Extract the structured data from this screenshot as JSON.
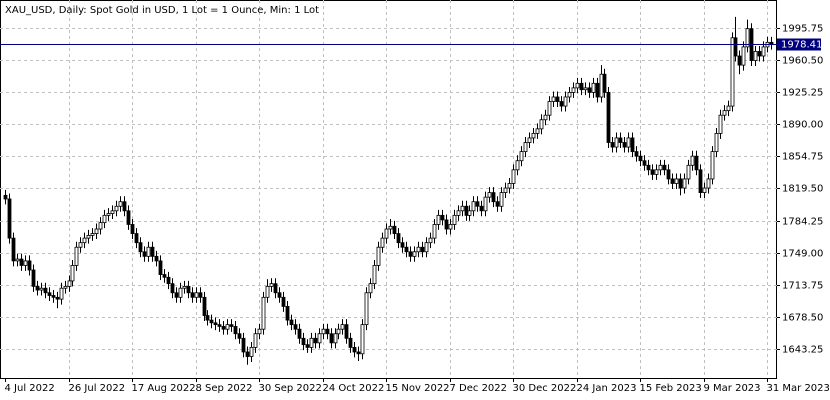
{
  "chart_data": {
    "type": "candlestick",
    "title": "XAU_USD, Daily:  Spot Gold in USD, 1 Lot = 1 Ounce, Min: 1 Lot",
    "categories": [
      "4 Jul 2022",
      null,
      null,
      null,
      null,
      null,
      null,
      null,
      null,
      null,
      null,
      null,
      null,
      null,
      null,
      null,
      "26 Jul 2022",
      null,
      null,
      null,
      null,
      null,
      null,
      null,
      null,
      null,
      null,
      null,
      null,
      null,
      null,
      null,
      "17 Aug 2022",
      null,
      null,
      null,
      null,
      null,
      null,
      null,
      null,
      null,
      null,
      null,
      null,
      null,
      null,
      null,
      "8 Sep 2022",
      null,
      null,
      null,
      null,
      null,
      null,
      null,
      null,
      null,
      null,
      null,
      null,
      null,
      null,
      null,
      "30 Sep 2022",
      null,
      null,
      null,
      null,
      null,
      null,
      null,
      null,
      null,
      null,
      null,
      null,
      null,
      null,
      null,
      "24 Oct 2022",
      null,
      null,
      null,
      null,
      null,
      null,
      null,
      null,
      null,
      null,
      null,
      null,
      null,
      null,
      null,
      "15 Nov 2022",
      null,
      null,
      null,
      null,
      null,
      null,
      null,
      null,
      null,
      null,
      null,
      null,
      null,
      null,
      null,
      "7 Dec 2022",
      null,
      null,
      null,
      null,
      null,
      null,
      null,
      null,
      null,
      null,
      null,
      null,
      null,
      null,
      null,
      "30 Dec 2022",
      null,
      null,
      null,
      null,
      null,
      null,
      null,
      null,
      null,
      null,
      null,
      null,
      null,
      null,
      null,
      "24 Jan 2023",
      null,
      null,
      null,
      null,
      null,
      null,
      null,
      null,
      null,
      null,
      null,
      null,
      null,
      null,
      null,
      "15 Feb 2023",
      null,
      null,
      null,
      null,
      null,
      null,
      null,
      null,
      null,
      null,
      null,
      null,
      null,
      null,
      null,
      "9 Mar 2023",
      null,
      null,
      null,
      null,
      null,
      null,
      null,
      null,
      null,
      null,
      null,
      null,
      null,
      null,
      null,
      "31 Mar 2023",
      null
    ],
    "open": [
      1812,
      1808,
      1765,
      1740,
      1742,
      1735,
      1740,
      1730,
      1712,
      1708,
      1710,
      1705,
      1702,
      1700,
      1698,
      1710,
      1712,
      1718,
      1735,
      1755,
      1760,
      1765,
      1768,
      1770,
      1775,
      1782,
      1790,
      1792,
      1795,
      1800,
      1805,
      1795,
      1780,
      1770,
      1760,
      1750,
      1745,
      1755,
      1745,
      1740,
      1725,
      1722,
      1715,
      1705,
      1700,
      1710,
      1712,
      1705,
      1700,
      1705,
      1700,
      1680,
      1675,
      1672,
      1670,
      1668,
      1665,
      1670,
      1668,
      1660,
      1655,
      1640,
      1635,
      1645,
      1660,
      1665,
      1700,
      1712,
      1715,
      1705,
      1700,
      1690,
      1675,
      1670,
      1665,
      1655,
      1648,
      1645,
      1655,
      1650,
      1660,
      1665,
      1660,
      1650,
      1660,
      1665,
      1670,
      1655,
      1645,
      1640,
      1638,
      1670,
      1705,
      1715,
      1735,
      1755,
      1765,
      1775,
      1778,
      1770,
      1760,
      1755,
      1750,
      1745,
      1750,
      1755,
      1750,
      1760,
      1765,
      1780,
      1790,
      1785,
      1775,
      1780,
      1790,
      1795,
      1800,
      1790,
      1795,
      1805,
      1800,
      1795,
      1810,
      1815,
      1805,
      1800,
      1815,
      1820,
      1825,
      1840,
      1850,
      1860,
      1870,
      1875,
      1880,
      1885,
      1895,
      1900,
      1915,
      1920,
      1915,
      1910,
      1920,
      1925,
      1930,
      1935,
      1928,
      1930,
      1925,
      1935,
      1920,
      1945,
      1925,
      1870,
      1865,
      1875,
      1870,
      1865,
      1875,
      1860,
      1855,
      1850,
      1845,
      1840,
      1835,
      1840,
      1845,
      1840,
      1830,
      1825,
      1830,
      1820,
      1830,
      1845,
      1855,
      1840,
      1815,
      1820,
      1830,
      1860,
      1880,
      1900,
      1905,
      1910,
      1985,
      1965,
      1955,
      1975,
      1995,
      1960,
      1970,
      1965,
      1975,
      1980
    ],
    "high": [
      1818,
      1814,
      1771,
      1748,
      1748,
      1746,
      1746,
      1736,
      1718,
      1716,
      1716,
      1711,
      1708,
      1706,
      1716,
      1718,
      1724,
      1741,
      1761,
      1766,
      1771,
      1774,
      1776,
      1781,
      1788,
      1796,
      1798,
      1801,
      1806,
      1811,
      1811,
      1801,
      1786,
      1776,
      1766,
      1756,
      1761,
      1761,
      1751,
      1746,
      1731,
      1728,
      1721,
      1711,
      1716,
      1718,
      1718,
      1711,
      1711,
      1711,
      1706,
      1686,
      1681,
      1678,
      1676,
      1674,
      1676,
      1676,
      1674,
      1666,
      1661,
      1646,
      1651,
      1666,
      1671,
      1706,
      1720,
      1721,
      1721,
      1711,
      1706,
      1696,
      1681,
      1676,
      1671,
      1661,
      1654,
      1661,
      1661,
      1666,
      1671,
      1671,
      1666,
      1666,
      1671,
      1676,
      1676,
      1661,
      1651,
      1646,
      1676,
      1711,
      1721,
      1741,
      1761,
      1771,
      1781,
      1786,
      1784,
      1776,
      1766,
      1761,
      1756,
      1756,
      1761,
      1761,
      1766,
      1771,
      1786,
      1796,
      1796,
      1791,
      1786,
      1796,
      1801,
      1806,
      1806,
      1801,
      1811,
      1811,
      1806,
      1816,
      1821,
      1821,
      1811,
      1821,
      1826,
      1831,
      1846,
      1856,
      1866,
      1876,
      1881,
      1886,
      1891,
      1901,
      1906,
      1921,
      1926,
      1926,
      1921,
      1926,
      1931,
      1936,
      1941,
      1941,
      1936,
      1936,
      1941,
      1941,
      1955,
      1951,
      1931,
      1876,
      1881,
      1881,
      1876,
      1881,
      1881,
      1866,
      1861,
      1856,
      1851,
      1846,
      1846,
      1851,
      1851,
      1846,
      1836,
      1836,
      1836,
      1836,
      1851,
      1861,
      1861,
      1846,
      1826,
      1836,
      1866,
      1886,
      1906,
      1911,
      1916,
      1991,
      2008,
      1971,
      1981,
      2005,
      2001,
      1976,
      1976,
      1981,
      1986,
      1986
    ],
    "low": [
      1802,
      1759,
      1734,
      1734,
      1729,
      1729,
      1724,
      1706,
      1702,
      1702,
      1699,
      1696,
      1694,
      1688,
      1692,
      1704,
      1706,
      1712,
      1729,
      1749,
      1754,
      1759,
      1762,
      1764,
      1769,
      1776,
      1784,
      1786,
      1789,
      1794,
      1789,
      1774,
      1764,
      1754,
      1744,
      1739,
      1739,
      1739,
      1734,
      1719,
      1716,
      1709,
      1699,
      1694,
      1694,
      1704,
      1699,
      1694,
      1694,
      1694,
      1674,
      1669,
      1666,
      1664,
      1662,
      1659,
      1659,
      1662,
      1654,
      1649,
      1634,
      1626,
      1629,
      1639,
      1654,
      1659,
      1694,
      1706,
      1699,
      1694,
      1684,
      1669,
      1664,
      1659,
      1649,
      1642,
      1639,
      1639,
      1644,
      1644,
      1654,
      1654,
      1644,
      1644,
      1654,
      1659,
      1649,
      1639,
      1634,
      1630,
      1632,
      1664,
      1699,
      1709,
      1729,
      1749,
      1759,
      1769,
      1764,
      1754,
      1749,
      1744,
      1739,
      1739,
      1744,
      1744,
      1744,
      1754,
      1759,
      1774,
      1779,
      1769,
      1769,
      1774,
      1784,
      1789,
      1784,
      1784,
      1789,
      1794,
      1789,
      1789,
      1804,
      1799,
      1794,
      1794,
      1809,
      1814,
      1819,
      1834,
      1844,
      1854,
      1864,
      1869,
      1874,
      1879,
      1889,
      1894,
      1909,
      1909,
      1904,
      1904,
      1914,
      1919,
      1924,
      1922,
      1922,
      1919,
      1919,
      1914,
      1914,
      1919,
      1864,
      1859,
      1859,
      1864,
      1859,
      1859,
      1854,
      1849,
      1844,
      1839,
      1834,
      1829,
      1829,
      1834,
      1834,
      1824,
      1819,
      1819,
      1812,
      1814,
      1824,
      1839,
      1834,
      1809,
      1809,
      1814,
      1824,
      1854,
      1874,
      1894,
      1899,
      1904,
      1959,
      1945,
      1949,
      1969,
      1954,
      1954,
      1959,
      1959,
      1969,
      1972
    ],
    "close": [
      1808,
      1765,
      1740,
      1742,
      1735,
      1740,
      1730,
      1712,
      1708,
      1710,
      1705,
      1702,
      1700,
      1698,
      1710,
      1712,
      1718,
      1735,
      1755,
      1760,
      1765,
      1768,
      1770,
      1775,
      1782,
      1790,
      1792,
      1795,
      1800,
      1805,
      1795,
      1780,
      1770,
      1760,
      1750,
      1745,
      1755,
      1745,
      1740,
      1725,
      1722,
      1715,
      1705,
      1700,
      1710,
      1712,
      1705,
      1700,
      1705,
      1700,
      1680,
      1675,
      1672,
      1670,
      1668,
      1665,
      1670,
      1668,
      1660,
      1655,
      1640,
      1635,
      1645,
      1660,
      1665,
      1700,
      1712,
      1715,
      1705,
      1700,
      1690,
      1675,
      1670,
      1665,
      1655,
      1648,
      1645,
      1655,
      1650,
      1660,
      1665,
      1660,
      1650,
      1660,
      1665,
      1670,
      1655,
      1645,
      1640,
      1638,
      1670,
      1705,
      1715,
      1735,
      1755,
      1765,
      1775,
      1778,
      1770,
      1760,
      1755,
      1750,
      1745,
      1750,
      1755,
      1750,
      1760,
      1765,
      1780,
      1790,
      1785,
      1775,
      1780,
      1790,
      1795,
      1800,
      1790,
      1795,
      1805,
      1800,
      1795,
      1810,
      1815,
      1805,
      1800,
      1815,
      1820,
      1825,
      1840,
      1850,
      1860,
      1870,
      1875,
      1880,
      1885,
      1895,
      1900,
      1915,
      1920,
      1915,
      1910,
      1920,
      1925,
      1930,
      1935,
      1928,
      1930,
      1925,
      1935,
      1920,
      1945,
      1925,
      1870,
      1865,
      1875,
      1870,
      1865,
      1875,
      1860,
      1855,
      1850,
      1845,
      1840,
      1835,
      1840,
      1845,
      1840,
      1830,
      1825,
      1830,
      1820,
      1830,
      1845,
      1855,
      1840,
      1815,
      1820,
      1830,
      1860,
      1880,
      1900,
      1905,
      1910,
      1985,
      1965,
      1955,
      1975,
      1995,
      1960,
      1970,
      1965,
      1975,
      1980,
      1978.41
    ],
    "current_price": 1978.41,
    "ylim": [
      1611.4,
      2026.5
    ],
    "yticks": [
      1643.25,
      {
        "value": 1678.5,
        "label": "1678.50"
      },
      1713.75,
      {
        "value": 1749,
        "label": "1749.00"
      },
      1784.25,
      {
        "value": 1819.5,
        "label": "1819.50"
      },
      1854.75,
      {
        "value": 1890,
        "label": "1890.00"
      },
      1925.25,
      {
        "value": 1960.5,
        "label": "1960.50"
      },
      1995.75
    ],
    "grid": true,
    "color": "#000000",
    "current_price_color": "#000080"
  }
}
